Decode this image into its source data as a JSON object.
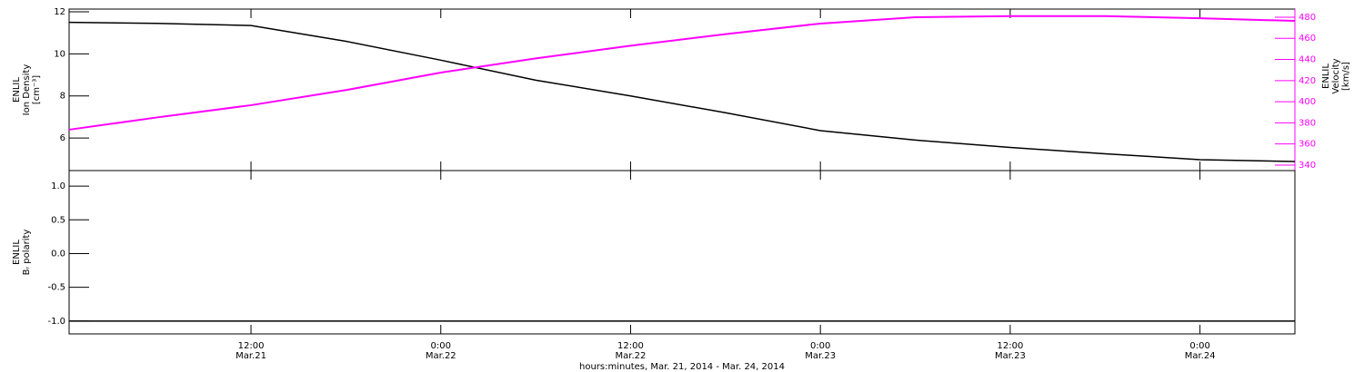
{
  "chart_data": [
    {
      "type": "line",
      "y_label": [
        "ENLIL",
        "Ion Density",
        "[cm⁻³]"
      ],
      "y2_label": [
        "ENLIL",
        "Velocity",
        "[km/s]"
      ],
      "x": [
        "2014-03-21T00:30",
        "2014-03-21T06:00",
        "2014-03-21T12:00",
        "2014-03-21T18:00",
        "2014-03-22T00:00",
        "2014-03-22T06:00",
        "2014-03-22T12:00",
        "2014-03-22T18:00",
        "2014-03-23T00:00",
        "2014-03-23T06:00",
        "2014-03-23T12:00",
        "2014-03-23T18:00",
        "2014-03-24T00:00",
        "2014-03-24T06:00"
      ],
      "xlim": [
        "2014-03-21T00:30",
        "2014-03-24T06:00"
      ],
      "series": [
        {
          "color": "#000000",
          "axis": "y",
          "values": [
            11.5,
            11.45,
            11.35,
            10.6,
            9.7,
            8.75,
            8.0,
            7.2,
            6.35,
            5.9,
            5.55,
            5.25,
            4.97,
            4.88
          ]
        },
        {
          "color": "#ff00ff",
          "axis": "y2",
          "values": [
            373.5,
            385,
            396.7,
            411,
            427.6,
            441,
            453,
            464,
            474,
            480,
            481,
            481,
            479,
            476.5
          ]
        }
      ],
      "ylim": [
        4.45,
        12.13
      ],
      "yticks": [
        6,
        8,
        10,
        12
      ],
      "y2lim": [
        334.8,
        487.7
      ],
      "y2ticks": [
        340,
        360,
        380,
        400,
        420,
        440,
        460,
        480
      ]
    },
    {
      "type": "line",
      "y_label": [
        "ENLIL",
        "Bᵣ polarity"
      ],
      "x_label": "hours:minutes, Mar. 21, 2014 - Mar. 24, 2014",
      "x": [
        "2014-03-21T00:30",
        "2014-03-21T06:00",
        "2014-03-21T12:00",
        "2014-03-21T18:00",
        "2014-03-22T00:00",
        "2014-03-22T06:00",
        "2014-03-22T12:00",
        "2014-03-22T18:00",
        "2014-03-23T00:00",
        "2014-03-23T06:00",
        "2014-03-23T12:00",
        "2014-03-23T18:00",
        "2014-03-24T00:00",
        "2014-03-24T06:00"
      ],
      "xlim": [
        "2014-03-21T00:30",
        "2014-03-24T06:00"
      ],
      "xticks": [
        {
          "value": "2014-03-21T12:00",
          "label": "12:00 Mar.21"
        },
        {
          "value": "2014-03-22T00:00",
          "label": "0:00 Mar.22"
        },
        {
          "value": "2014-03-22T12:00",
          "label": "12:00 Mar.22"
        },
        {
          "value": "2014-03-23T00:00",
          "label": "0:00 Mar.23"
        },
        {
          "value": "2014-03-23T12:00",
          "label": "12:00 Mar.23"
        },
        {
          "value": "2014-03-24T00:00",
          "label": "0:00 Mar.24"
        }
      ],
      "series": [
        {
          "color": "#000000",
          "axis": "y",
          "values": [
            -1,
            -1,
            -1,
            -1,
            -1,
            -1,
            -1,
            -1,
            -1,
            -1,
            -1,
            -1,
            -1,
            -1
          ]
        }
      ],
      "ylim": [
        -1.19,
        1.23
      ],
      "yticks": [
        {
          "value": -1,
          "label": "-1.0"
        },
        -0.5,
        {
          "value": 0,
          "label": "0.0"
        },
        0.5,
        {
          "value": 1,
          "label": "1.0"
        }
      ]
    }
  ]
}
